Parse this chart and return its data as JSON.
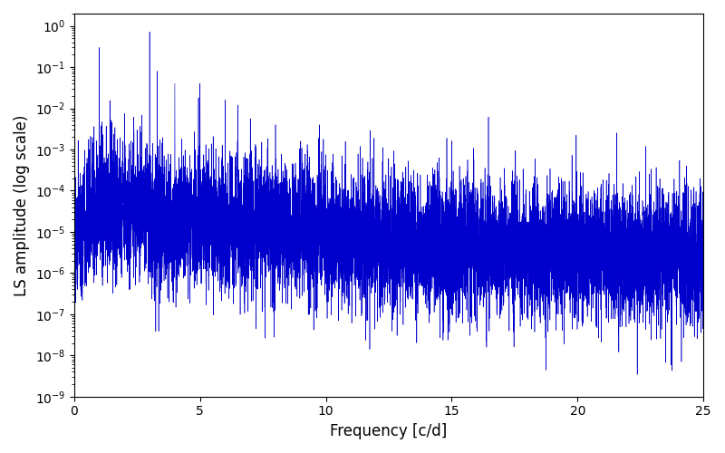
{
  "xlabel": "Frequency [c/d]",
  "ylabel": "LS amplitude (log scale)",
  "xlim": [
    0,
    25
  ],
  "ylim": [
    1e-09,
    2.0
  ],
  "line_color": "#0000CC",
  "yscale": "log",
  "freq_max": 25.0,
  "n_points": 10000,
  "seed": 77,
  "background_color": "#ffffff"
}
